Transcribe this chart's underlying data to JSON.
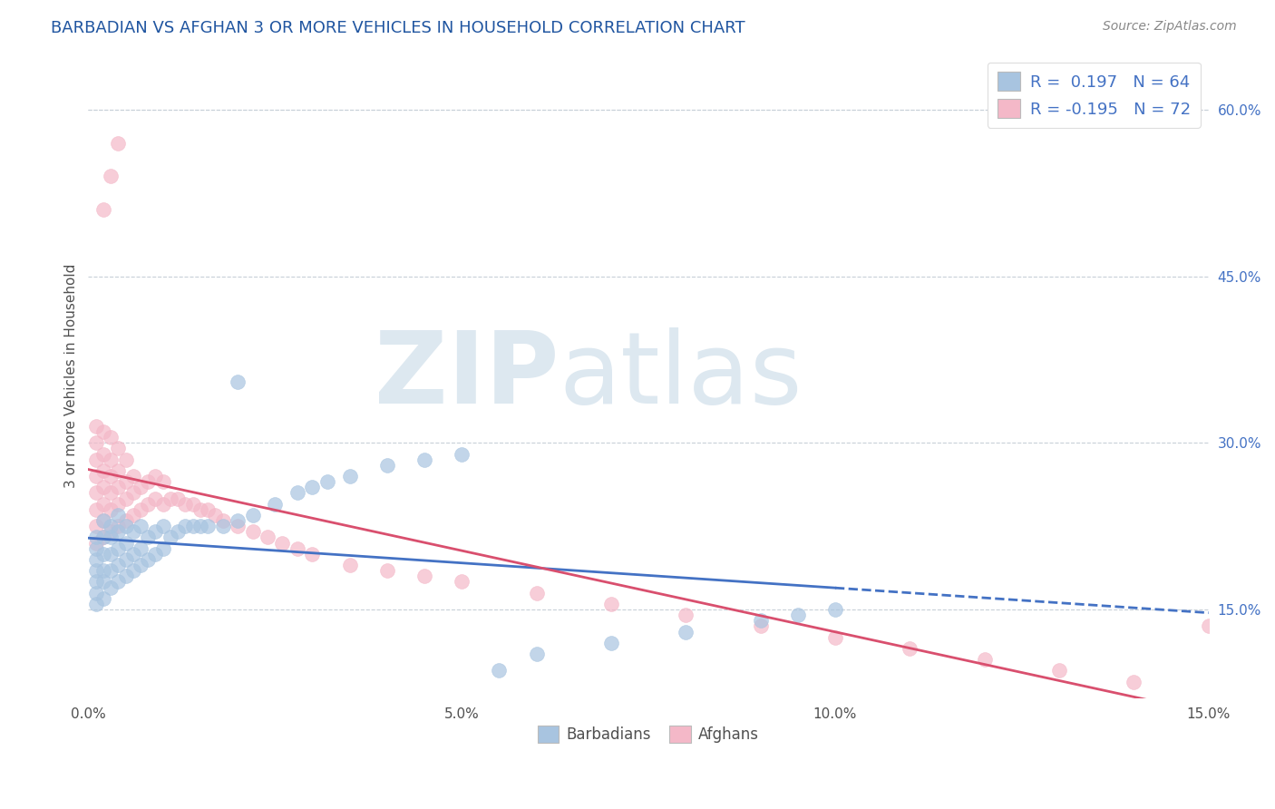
{
  "title": "BARBADIAN VS AFGHAN 3 OR MORE VEHICLES IN HOUSEHOLD CORRELATION CHART",
  "source_text": "Source: ZipAtlas.com",
  "ylabel": "3 or more Vehicles in Household",
  "xlim": [
    0.0,
    0.15
  ],
  "ylim": [
    0.07,
    0.65
  ],
  "xticks": [
    0.0,
    0.05,
    0.1,
    0.15
  ],
  "xtick_labels": [
    "0.0%",
    "5.0%",
    "10.0%",
    "15.0%"
  ],
  "yticks": [
    0.15,
    0.3,
    0.45,
    0.6
  ],
  "ytick_labels": [
    "15.0%",
    "30.0%",
    "45.0%",
    "60.0%"
  ],
  "legend_entry1": "R =  0.197   N = 64",
  "legend_entry2": "R = -0.195   N = 72",
  "barbadian_color": "#a8c4e0",
  "afghan_color": "#f4b8c8",
  "barbadian_line_color": "#4472c4",
  "afghan_line_color": "#d94f6e",
  "watermark_zip": "ZIP",
  "watermark_atlas": "atlas",
  "watermark_color": "#dde8f0",
  "legend_label1": "Barbadians",
  "legend_label2": "Afghans",
  "grid_color": "#c8d0d8",
  "background_color": "#ffffff",
  "title_color": "#2055a0",
  "barbadian_x": [
    0.001,
    0.001,
    0.001,
    0.001,
    0.001,
    0.001,
    0.001,
    0.002,
    0.002,
    0.002,
    0.002,
    0.002,
    0.002,
    0.003,
    0.003,
    0.003,
    0.003,
    0.003,
    0.004,
    0.004,
    0.004,
    0.004,
    0.004,
    0.005,
    0.005,
    0.005,
    0.005,
    0.006,
    0.006,
    0.006,
    0.007,
    0.007,
    0.007,
    0.008,
    0.008,
    0.009,
    0.009,
    0.01,
    0.01,
    0.011,
    0.012,
    0.013,
    0.014,
    0.015,
    0.016,
    0.018,
    0.02,
    0.022,
    0.025,
    0.028,
    0.03,
    0.032,
    0.035,
    0.04,
    0.045,
    0.05,
    0.055,
    0.06,
    0.07,
    0.08,
    0.09,
    0.095,
    0.1,
    0.02
  ],
  "barbadian_y": [
    0.155,
    0.165,
    0.175,
    0.185,
    0.195,
    0.205,
    0.215,
    0.16,
    0.175,
    0.185,
    0.2,
    0.215,
    0.23,
    0.17,
    0.185,
    0.2,
    0.215,
    0.225,
    0.175,
    0.19,
    0.205,
    0.22,
    0.235,
    0.18,
    0.195,
    0.21,
    0.225,
    0.185,
    0.2,
    0.22,
    0.19,
    0.205,
    0.225,
    0.195,
    0.215,
    0.2,
    0.22,
    0.205,
    0.225,
    0.215,
    0.22,
    0.225,
    0.225,
    0.225,
    0.225,
    0.225,
    0.23,
    0.235,
    0.245,
    0.255,
    0.26,
    0.265,
    0.27,
    0.28,
    0.285,
    0.29,
    0.095,
    0.11,
    0.12,
    0.13,
    0.14,
    0.145,
    0.15,
    0.355
  ],
  "afghan_x": [
    0.001,
    0.001,
    0.001,
    0.001,
    0.001,
    0.001,
    0.001,
    0.001,
    0.002,
    0.002,
    0.002,
    0.002,
    0.002,
    0.002,
    0.002,
    0.003,
    0.003,
    0.003,
    0.003,
    0.003,
    0.003,
    0.004,
    0.004,
    0.004,
    0.004,
    0.004,
    0.005,
    0.005,
    0.005,
    0.005,
    0.006,
    0.006,
    0.006,
    0.007,
    0.007,
    0.008,
    0.008,
    0.009,
    0.009,
    0.01,
    0.01,
    0.011,
    0.012,
    0.013,
    0.014,
    0.015,
    0.016,
    0.017,
    0.018,
    0.02,
    0.022,
    0.024,
    0.026,
    0.028,
    0.03,
    0.035,
    0.04,
    0.045,
    0.05,
    0.06,
    0.07,
    0.08,
    0.09,
    0.1,
    0.11,
    0.12,
    0.13,
    0.14,
    0.15,
    0.002,
    0.003,
    0.004
  ],
  "afghan_y": [
    0.21,
    0.225,
    0.24,
    0.255,
    0.27,
    0.285,
    0.3,
    0.315,
    0.215,
    0.23,
    0.245,
    0.26,
    0.275,
    0.29,
    0.31,
    0.22,
    0.24,
    0.255,
    0.27,
    0.285,
    0.305,
    0.225,
    0.245,
    0.26,
    0.275,
    0.295,
    0.23,
    0.25,
    0.265,
    0.285,
    0.235,
    0.255,
    0.27,
    0.24,
    0.26,
    0.245,
    0.265,
    0.25,
    0.27,
    0.245,
    0.265,
    0.25,
    0.25,
    0.245,
    0.245,
    0.24,
    0.24,
    0.235,
    0.23,
    0.225,
    0.22,
    0.215,
    0.21,
    0.205,
    0.2,
    0.19,
    0.185,
    0.18,
    0.175,
    0.165,
    0.155,
    0.145,
    0.135,
    0.125,
    0.115,
    0.105,
    0.095,
    0.085,
    0.135,
    0.51,
    0.54,
    0.57
  ]
}
